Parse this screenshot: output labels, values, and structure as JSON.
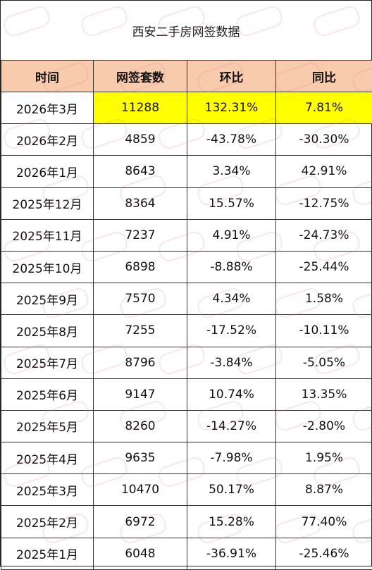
{
  "title": "西安二手房网签数据",
  "headers": [
    "时间",
    "网签套数",
    "环比",
    "同比"
  ],
  "highlight_color": "#ffff00",
  "header_bg_color": "#f8cbad",
  "rows": [
    {
      "time": "2026年3月",
      "count": "11288",
      "mom": "132.31%",
      "yoy": "7.81%"
    },
    {
      "time": "2026年2月",
      "count": "4859",
      "mom": "-43.78%",
      "yoy": "-30.30%"
    },
    {
      "time": "2026年1月",
      "count": "8643",
      "mom": "3.34%",
      "yoy": "42.91%"
    },
    {
      "time": "2025年12月",
      "count": "8364",
      "mom": "15.57%",
      "yoy": "-12.75%"
    },
    {
      "time": "2025年11月",
      "count": "7237",
      "mom": "4.91%",
      "yoy": "-24.73%"
    },
    {
      "time": "2025年10月",
      "count": "6898",
      "mom": "-8.88%",
      "yoy": "-25.44%"
    },
    {
      "time": "2025年9月",
      "count": "7570",
      "mom": "4.34%",
      "yoy": "1.58%"
    },
    {
      "time": "2025年8月",
      "count": "7255",
      "mom": "-17.52%",
      "yoy": "-10.11%"
    },
    {
      "time": "2025年7月",
      "count": "8796",
      "mom": "-3.84%",
      "yoy": "-5.05%"
    },
    {
      "time": "2025年6月",
      "count": "9147",
      "mom": "10.74%",
      "yoy": "13.35%"
    },
    {
      "time": "2025年5月",
      "count": "8260",
      "mom": "-14.27%",
      "yoy": "-2.80%"
    },
    {
      "time": "2025年4月",
      "count": "9635",
      "mom": "-7.98%",
      "yoy": "1.95%"
    },
    {
      "time": "2025年3月",
      "count": "10470",
      "mom": "50.17%",
      "yoy": "8.87%"
    },
    {
      "time": "2025年2月",
      "count": "6972",
      "mom": "15.28%",
      "yoy": "77.40%"
    },
    {
      "time": "2025年1月",
      "count": "6048",
      "mom": "-36.91%",
      "yoy": "-25.46%"
    }
  ]
}
